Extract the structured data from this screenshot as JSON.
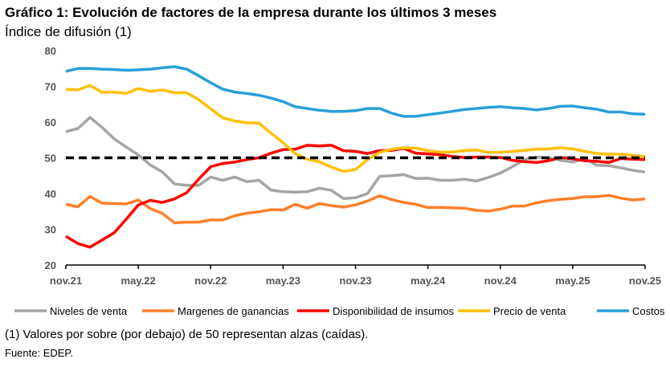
{
  "chart_data": {
    "type": "line",
    "title": "Gráfico 1: Evolución de factores de la empresa durante los últimos 3 meses",
    "subtitle": "Índice de difusión (1)",
    "ylim": [
      20,
      80
    ],
    "yticks": [
      "20",
      "30",
      "40",
      "50",
      "60",
      "70",
      "80"
    ],
    "xtick_labels": [
      "nov.21",
      "may.22",
      "nov.22",
      "may.23",
      "nov.23",
      "may.24",
      "nov.24",
      "may.25",
      "nov.25"
    ],
    "n_points": 49,
    "reference_line": 50,
    "legend_position": "bottom",
    "series": [
      {
        "name": "Niveles de venta",
        "color": "#A5A5A5",
        "values": [
          57.3,
          58.2,
          61.3,
          58.5,
          55.3,
          53,
          50.8,
          48,
          46,
          42.7,
          42.3,
          42.3,
          44.6,
          43.7,
          44.6,
          43.3,
          43.7,
          41,
          40.5,
          40.4,
          40.5,
          41.5,
          40.9,
          38.6,
          38.8,
          40,
          44.8,
          45,
          45.3,
          44.2,
          44.3,
          43.7,
          43.7,
          44,
          43.5,
          44.5,
          45.7,
          47.5,
          49.5,
          50.2,
          50,
          49.3,
          48.8,
          49.8,
          47.9,
          47.8,
          47.2,
          46.5,
          46
        ]
      },
      {
        "name": "Margenes de ganancias",
        "color": "#FF7F2A",
        "values": [
          37,
          36.3,
          39.2,
          37.3,
          37.2,
          37.1,
          38.2,
          35.8,
          34.4,
          31.8,
          32,
          32,
          32.6,
          32.6,
          33.8,
          34.5,
          34.9,
          35.5,
          35.4,
          37,
          35.9,
          37.2,
          36.6,
          36.2,
          36.8,
          37.9,
          39.4,
          38.3,
          37.5,
          37,
          36.1,
          36.1,
          36,
          35.9,
          35.3,
          35.1,
          35.6,
          36.5,
          36.5,
          37.4,
          38,
          38.4,
          38.6,
          39.1,
          39.1,
          39.5,
          38.7,
          38.2,
          38.5
        ]
      },
      {
        "name": "Disponibilidad de insumos",
        "color": "#FF0000",
        "values": [
          28,
          26,
          25,
          27,
          29,
          32.8,
          36.8,
          38.1,
          37.5,
          38.5,
          40.2,
          44,
          47.5,
          48.4,
          48.8,
          49.5,
          50,
          51.3,
          52.3,
          52.4,
          53.5,
          53.3,
          53.5,
          52,
          51.8,
          51.2,
          52,
          52.1,
          52.6,
          51.3,
          51.1,
          50.9,
          50.4,
          50.1,
          50.2,
          50.2,
          50.1,
          49.3,
          48.9,
          48.7,
          49.2,
          50.1,
          49.7,
          49.2,
          49,
          48.7,
          49.8,
          49.6,
          49.5
        ]
      },
      {
        "name": "Precio de venta",
        "color": "#FFC000",
        "values": [
          69.2,
          69,
          70.3,
          68.3,
          68.4,
          68,
          69.4,
          68.6,
          69,
          68.2,
          68.2,
          66.3,
          63.7,
          61.2,
          60.3,
          59.8,
          59.7,
          56.9,
          54.2,
          51.2,
          49.6,
          48.9,
          47.4,
          46.2,
          46.7,
          49.5,
          51.5,
          52.4,
          52.8,
          52.7,
          52,
          51.6,
          51.6,
          52,
          52.2,
          51.5,
          51.5,
          51.8,
          52.1,
          52.4,
          52.5,
          52.8,
          52.5,
          51.8,
          51.2,
          51,
          51,
          50.7,
          50.3
        ]
      },
      {
        "name": "Costos",
        "color": "#2A9FD8",
        "values": [
          74.2,
          75,
          75,
          74.8,
          74.7,
          74.5,
          74.6,
          74.8,
          75.2,
          75.5,
          74.8,
          73,
          71,
          69.2,
          68.4,
          68,
          67.5,
          66.7,
          65.7,
          64.3,
          63.8,
          63.3,
          63,
          63,
          63.2,
          63.8,
          63.8,
          62.5,
          61.6,
          61.6,
          62.1,
          62.5,
          63,
          63.5,
          63.8,
          64.1,
          64.3,
          64,
          63.8,
          63.4,
          63.8,
          64.4,
          64.5,
          64,
          63.6,
          62.8,
          62.8,
          62.3,
          62.2
        ]
      }
    ]
  },
  "footnote": "(1) Valores por sobre (por debajo) de 50 representan alzas (caídas).",
  "source": "Fuente: EDEP."
}
